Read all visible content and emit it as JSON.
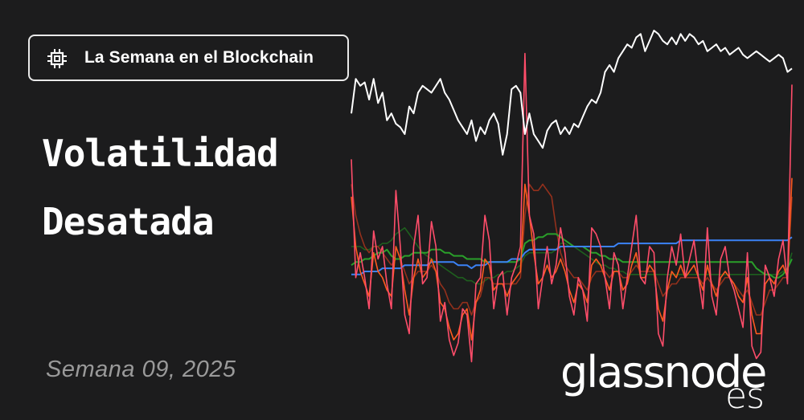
{
  "badge": {
    "icon": "chip-icon",
    "label": "La Semana en el Blockchain"
  },
  "title": {
    "line1": "Volatilidad",
    "line2": "Desatada"
  },
  "week": "Semana 09, 2025",
  "logo": {
    "name": "glassnode",
    "suffix": "es"
  },
  "colors": {
    "background": "#1c1c1d",
    "price": "#ffffff",
    "vol_1w": "#ff4d6a",
    "vol_2w": "#ff5a1f",
    "vol_1m": "#a8341c",
    "vol_3m": "#2aa02a",
    "vol_6m": "#1e6b1e",
    "vol_1y": "#3b82f6"
  },
  "chart_data": {
    "type": "line",
    "title": "",
    "xlabel": "",
    "ylabel": "",
    "grid": false,
    "legend": "none",
    "x_range": [
      0,
      100
    ],
    "series": [
      {
        "name": "price",
        "color": "#ffffff",
        "values": [
          76,
          86,
          84,
          85,
          80,
          86,
          79,
          82,
          74,
          76,
          73,
          72,
          70,
          78,
          76,
          82,
          84,
          83,
          82,
          84,
          86,
          82,
          80,
          77,
          74,
          72,
          70,
          74,
          68,
          72,
          70,
          74,
          76,
          73,
          64,
          70,
          83,
          84,
          82,
          70,
          76,
          70,
          68,
          66,
          71,
          73,
          74,
          70,
          72,
          70,
          73,
          72,
          75,
          78,
          80,
          79,
          82,
          88,
          90,
          88,
          92,
          94,
          96,
          95,
          98,
          99,
          94,
          97,
          100,
          99,
          97,
          96,
          98,
          96,
          99,
          97,
          99,
          98,
          96,
          97,
          94,
          95,
          96,
          94,
          95,
          93,
          94,
          95,
          93,
          92,
          93,
          94,
          93,
          92,
          91,
          92,
          93,
          92,
          88,
          89
        ]
      },
      {
        "name": "vol_1w",
        "color": "#ff4d6a",
        "values": [
          68,
          30,
          38,
          30,
          20,
          45,
          36,
          40,
          28,
          20,
          58,
          40,
          18,
          12,
          40,
          50,
          28,
          30,
          48,
          40,
          16,
          22,
          10,
          5,
          9,
          20,
          18,
          3,
          28,
          30,
          50,
          42,
          20,
          30,
          32,
          18,
          30,
          34,
          40,
          102,
          50,
          44,
          20,
          30,
          40,
          28,
          34,
          46,
          38,
          24,
          18,
          30,
          26,
          16,
          46,
          44,
          40,
          30,
          20,
          38,
          34,
          20,
          30,
          40,
          50,
          30,
          28,
          40,
          38,
          12,
          8,
          30,
          40,
          34,
          44,
          30,
          36,
          42,
          30,
          20,
          46,
          24,
          18,
          36,
          40,
          30,
          26,
          20,
          14,
          38,
          8,
          4,
          6,
          34,
          30,
          24,
          36,
          42,
          28,
          92
        ]
      },
      {
        "name": "vol_2w",
        "color": "#ff5a1f",
        "values": [
          56,
          40,
          32,
          28,
          24,
          38,
          32,
          30,
          26,
          24,
          40,
          36,
          26,
          18,
          30,
          36,
          30,
          32,
          36,
          32,
          22,
          20,
          14,
          10,
          12,
          18,
          20,
          10,
          22,
          26,
          36,
          34,
          26,
          28,
          28,
          24,
          28,
          30,
          32,
          60,
          50,
          38,
          28,
          30,
          34,
          30,
          32,
          36,
          32,
          26,
          22,
          28,
          26,
          22,
          34,
          36,
          34,
          30,
          26,
          32,
          32,
          26,
          28,
          34,
          38,
          30,
          30,
          34,
          32,
          20,
          16,
          26,
          32,
          30,
          34,
          30,
          32,
          34,
          30,
          26,
          34,
          28,
          24,
          30,
          32,
          30,
          28,
          24,
          22,
          30,
          18,
          12,
          12,
          28,
          30,
          28,
          32,
          34,
          30,
          62
        ]
      },
      {
        "name": "vol_1m",
        "color": "#a8341c",
        "values": [
          60,
          50,
          44,
          40,
          38,
          40,
          40,
          38,
          36,
          34,
          36,
          36,
          32,
          28,
          30,
          32,
          32,
          32,
          34,
          32,
          28,
          26,
          22,
          20,
          20,
          22,
          22,
          18,
          22,
          24,
          30,
          30,
          28,
          28,
          28,
          28,
          28,
          28,
          30,
          50,
          60,
          58,
          58,
          60,
          58,
          56,
          46,
          38,
          34,
          32,
          30,
          30,
          28,
          26,
          30,
          32,
          32,
          32,
          30,
          32,
          32,
          30,
          30,
          32,
          34,
          32,
          32,
          32,
          32,
          28,
          24,
          26,
          28,
          28,
          30,
          30,
          30,
          30,
          30,
          28,
          30,
          28,
          26,
          28,
          30,
          30,
          28,
          26,
          24,
          26,
          22,
          18,
          18,
          22,
          26,
          26,
          28,
          30,
          30,
          56
        ]
      },
      {
        "name": "vol_3m",
        "color": "#2aa02a",
        "values": [
          34,
          35,
          35,
          36,
          36,
          37,
          38,
          38,
          39,
          37,
          36,
          36,
          37,
          37,
          38,
          38,
          38,
          38,
          39,
          39,
          39,
          38,
          38,
          37,
          37,
          37,
          36,
          36,
          36,
          36,
          35,
          35,
          35,
          35,
          35,
          35,
          35,
          35,
          36,
          41,
          42,
          42,
          43,
          43,
          44,
          44,
          44,
          43,
          42,
          41,
          40,
          40,
          40,
          39,
          38,
          38,
          37,
          37,
          36,
          36,
          36,
          35,
          35,
          35,
          35,
          35,
          35,
          35,
          35,
          35,
          35,
          35,
          35,
          35,
          35,
          35,
          35,
          35,
          35,
          35,
          35,
          35,
          35,
          35,
          35,
          35,
          35,
          35,
          35,
          35,
          35,
          33,
          32,
          31,
          31,
          30,
          30,
          31,
          33,
          36
        ]
      },
      {
        "name": "vol_6m",
        "color": "#1e6b1e",
        "values": [
          40,
          40,
          40,
          39,
          39,
          40,
          40,
          41,
          41,
          42,
          44,
          45,
          46,
          44,
          42,
          40,
          38,
          37,
          36,
          35,
          34,
          33,
          32,
          31,
          30,
          30,
          29,
          29,
          28,
          28,
          29,
          30,
          30,
          31,
          31,
          32,
          32,
          33,
          34,
          37,
          38,
          38,
          38,
          38,
          38,
          38,
          39,
          41,
          41,
          40,
          40,
          39,
          38,
          37,
          36,
          35,
          34,
          34,
          33,
          33,
          32,
          32,
          31,
          31,
          31,
          31,
          31,
          31,
          31,
          31,
          31,
          31,
          31,
          31,
          31,
          31,
          31,
          31,
          31,
          31,
          31,
          31,
          31,
          31,
          31,
          31,
          31,
          31,
          31,
          31,
          31,
          31,
          31,
          31,
          31,
          31,
          31,
          32,
          33,
          38
        ]
      },
      {
        "name": "vol_1y",
        "color": "#3b82f6",
        "values": [
          31,
          31,
          31,
          32,
          32,
          32,
          32,
          33,
          33,
          33,
          33,
          33,
          34,
          34,
          34,
          34,
          34,
          34,
          35,
          35,
          35,
          35,
          35,
          35,
          34,
          34,
          34,
          33,
          34,
          34,
          34,
          35,
          35,
          35,
          35,
          35,
          36,
          36,
          36,
          38,
          39,
          39,
          39,
          39,
          39,
          39,
          39,
          40,
          40,
          40,
          40,
          40,
          40,
          40,
          40,
          40,
          40,
          40,
          40,
          40,
          41,
          41,
          41,
          41,
          41,
          41,
          41,
          41,
          41,
          41,
          41,
          41,
          41,
          41,
          42,
          42,
          42,
          42,
          42,
          42,
          42,
          42,
          42,
          42,
          42,
          42,
          42,
          42,
          42,
          42,
          42,
          42,
          42,
          42,
          42,
          42,
          42,
          42,
          42,
          43
        ]
      }
    ]
  }
}
